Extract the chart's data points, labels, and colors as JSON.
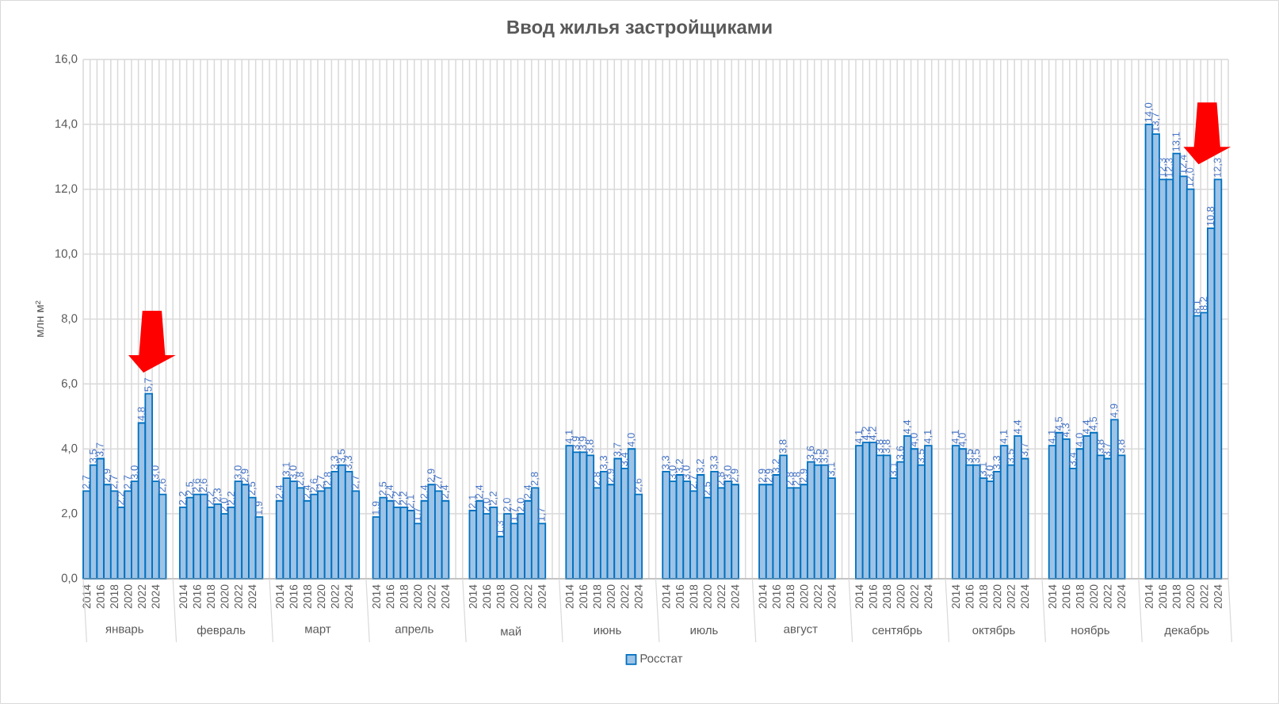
{
  "chart_data": {
    "type": "bar",
    "title": "Ввод жилья застройщиками",
    "ylabel": "млн м²",
    "categories": [
      "2014",
      null,
      "2016",
      null,
      "2018",
      null,
      "2020",
      null,
      "2022",
      null,
      "2024",
      null,
      "2014",
      null,
      "2016",
      null,
      "2018",
      null,
      "2020",
      null,
      "2022",
      null,
      "2024",
      null,
      "2014",
      null,
      "2016",
      null,
      "2018",
      null,
      "2020",
      null,
      "2022",
      null,
      "2024",
      null,
      "2014",
      null,
      "2016",
      null,
      "2018",
      null,
      "2020",
      null,
      "2022",
      null,
      "2024",
      null,
      "2014",
      null,
      "2016",
      null,
      "2018",
      null,
      "2020",
      null,
      "2022",
      null,
      "2024",
      null,
      "2014",
      null,
      "2016",
      null,
      "2018",
      null,
      "2020",
      null,
      "2022",
      null,
      "2024",
      null,
      "2014",
      null,
      "2016",
      null,
      "2018",
      null,
      "2020",
      null,
      "2022",
      null,
      "2024",
      null,
      "2014",
      null,
      "2016",
      null,
      "2018",
      null,
      "2020",
      null,
      "2022",
      null,
      "2024",
      null,
      "2014",
      null,
      "2016",
      null,
      "2018",
      null,
      "2020",
      null,
      "2022",
      null,
      "2024",
      null,
      "2014",
      null,
      "2016",
      null,
      "2018",
      null,
      "2020",
      null,
      "2022",
      null,
      "2024",
      null,
      "2014",
      null,
      "2016",
      null,
      "2018",
      null,
      "2020",
      null,
      "2022",
      null,
      "2024",
      null,
      "2014",
      null,
      "2016",
      null,
      "2018",
      null,
      "2020",
      null,
      "2022",
      null,
      "2024",
      null
    ],
    "series": [
      {
        "name": "Росстат",
        "color": "#9dc3e6",
        "values": [
          2.7,
          3.5,
          3.7,
          2.9,
          2.7,
          2.2,
          2.7,
          3.0,
          4.8,
          5.7,
          3.0,
          2.6,
          2.2,
          2.5,
          2.6,
          2.6,
          2.2,
          2.3,
          2.0,
          2.2,
          3.0,
          2.9,
          2.5,
          1.9,
          2.4,
          3.1,
          3.0,
          2.8,
          2.4,
          2.6,
          2.7,
          2.8,
          3.3,
          3.5,
          3.3,
          2.7,
          1.9,
          2.5,
          2.4,
          2.2,
          2.2,
          2.1,
          1.7,
          2.4,
          2.9,
          2.7,
          2.4,
          null,
          2.1,
          2.4,
          2.0,
          2.2,
          1.3,
          2.0,
          1.7,
          2.0,
          2.4,
          2.8,
          1.7,
          null,
          4.1,
          3.9,
          3.9,
          3.8,
          2.8,
          3.3,
          2.9,
          3.7,
          3.4,
          4.0,
          2.6,
          null,
          3.3,
          3.0,
          3.2,
          3.0,
          2.7,
          3.2,
          2.5,
          3.3,
          2.8,
          3.0,
          2.9,
          null,
          2.9,
          2.9,
          3.2,
          3.8,
          2.8,
          2.8,
          2.9,
          3.6,
          3.5,
          3.5,
          3.1,
          null,
          4.1,
          4.2,
          4.2,
          3.8,
          3.8,
          3.1,
          3.6,
          4.4,
          4.0,
          3.5,
          4.1,
          null,
          4.1,
          4.0,
          3.5,
          3.5,
          3.1,
          3.0,
          3.3,
          4.1,
          3.5,
          4.4,
          3.7,
          null,
          4.1,
          4.5,
          4.3,
          3.4,
          4.0,
          4.4,
          4.5,
          3.8,
          3.7,
          4.9,
          3.8,
          null,
          14.0,
          13.7,
          12.3,
          12.3,
          13.1,
          12.4,
          12.0,
          8.1,
          8.2,
          10.8,
          12.3,
          null
        ],
        "value_labels": [
          "2,7",
          "3,5",
          "3,7",
          "2,9",
          "2,7",
          "2,2",
          "2,7",
          "3,0",
          "4,8",
          "5,7",
          "3,0",
          "2,6",
          "2,2",
          "2,5",
          "2,6",
          "2,6",
          "2,2",
          "2,3",
          "2,0",
          "2,2",
          "3,0",
          "2,9",
          "2,5",
          "1,9",
          "2,4",
          "3,1",
          "3,0",
          "2,8",
          "2,4",
          "2,6",
          "2,7",
          "2,8",
          "3,3",
          "3,5",
          "3,3",
          "2,7",
          "1,9",
          "2,5",
          "2,4",
          "2,2",
          "2,2",
          "2,1",
          "1,7",
          "2,4",
          "2,9",
          "2,7",
          "2,4",
          null,
          "2,1",
          "2,4",
          "2,0",
          "2,2",
          "1,3",
          "2,0",
          "1,7",
          "2,0",
          "2,4",
          "2,8",
          "1,7",
          null,
          "4,1",
          "3,9",
          "3,9",
          "3,8",
          "2,8",
          "3,3",
          "2,9",
          "3,7",
          "3,4",
          "4,0",
          "2,6",
          null,
          "3,3",
          "3,0",
          "3,2",
          "3,0",
          "2,7",
          "3,2",
          "2,5",
          "3,3",
          "2,8",
          "3,0",
          "2,9",
          null,
          "2,9",
          "2,9",
          "3,2",
          "3,8",
          "2,8",
          "2,8",
          "2,9",
          "3,6",
          "3,5",
          "3,5",
          "3,1",
          null,
          "4,1",
          "4,2",
          "4,2",
          "3,8",
          "3,8",
          "3,1",
          "3,6",
          "4,4",
          "4,0",
          "3,5",
          "4,1",
          null,
          "4,1",
          "4,0",
          "3,5",
          "3,5",
          "3,1",
          "3,0",
          "3,3",
          "4,1",
          "3,5",
          "4,4",
          "3,7",
          null,
          "4,1",
          "4,5",
          "4,3",
          "3,4",
          "4,0",
          "4,4",
          "4,5",
          "3,8",
          "3,7",
          "4,9",
          "3,8",
          null,
          "14,0",
          "13,7",
          "12,3",
          "12,3",
          "13,1",
          "12,4",
          "12,0",
          "8,1",
          "8,2",
          "10,8",
          "12,3",
          null
        ]
      }
    ],
    "annotations": [
      "январь",
      "февраль",
      "март",
      "апрель",
      "май",
      "июнь",
      "июль",
      "август",
      "сентябрь",
      "октябрь",
      "ноябрь",
      "декабрь"
    ],
    "ylim": [
      0,
      16
    ],
    "yticks": [
      {
        "value": 0,
        "label": "0,0"
      },
      {
        "value": 2,
        "label": "2,0"
      },
      {
        "value": 4,
        "label": "4,0"
      },
      {
        "value": 6,
        "label": "6,0"
      },
      {
        "value": 8,
        "label": "8,0"
      },
      {
        "value": 10,
        "label": "10,0"
      },
      {
        "value": 12,
        "label": "12,0"
      },
      {
        "value": 14,
        "label": "14,0"
      },
      {
        "value": 16,
        "label": "16,0"
      }
    ],
    "grid": true,
    "legend": "bottom"
  }
}
